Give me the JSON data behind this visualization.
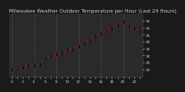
{
  "title": "Milwaukee Weather Outdoor Temperature per Hour (Last 24 Hours)",
  "hours": [
    0,
    1,
    2,
    3,
    4,
    5,
    6,
    7,
    8,
    9,
    10,
    11,
    12,
    13,
    14,
    15,
    16,
    17,
    18,
    19,
    20,
    21,
    22,
    23
  ],
  "temps": [
    20,
    21,
    22,
    23,
    23,
    24,
    28,
    30,
    31,
    32,
    34,
    35,
    37,
    39,
    41,
    44,
    46,
    48,
    50,
    52,
    54,
    52,
    50,
    48
  ],
  "line_color": "#ff0000",
  "marker_color": "#000000",
  "bg_color": "#1a1a1a",
  "plot_bg_color": "#2a2a2a",
  "grid_color": "#555555",
  "title_color": "#cccccc",
  "ylabel_color": "#cccccc",
  "xlabel_color": "#cccccc",
  "ylim": [
    15,
    60
  ],
  "ytick_values": [
    20,
    25,
    30,
    35,
    40,
    45,
    50,
    55
  ],
  "xtick_values": [
    0,
    1,
    2,
    3,
    4,
    5,
    6,
    7,
    8,
    9,
    10,
    11,
    12,
    13,
    14,
    15,
    16,
    17,
    18,
    19,
    20,
    21,
    22,
    23
  ],
  "tick_fontsize": 3.0,
  "title_fontsize": 4.0,
  "grid_every": 4
}
